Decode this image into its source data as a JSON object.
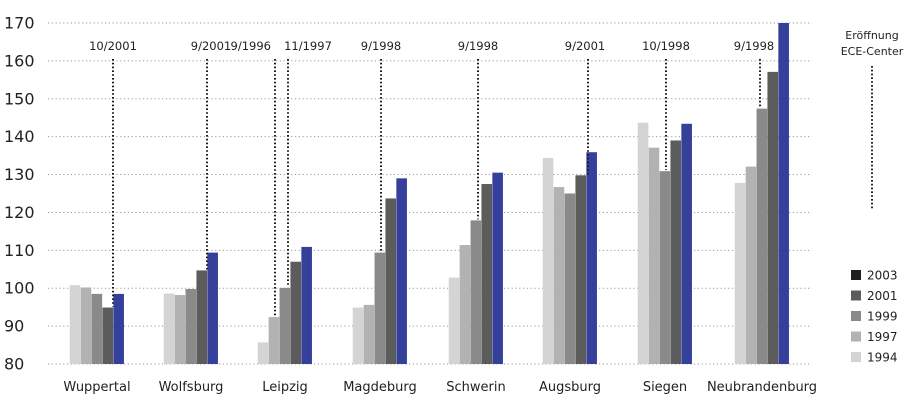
{
  "chart_data": {
    "type": "bar",
    "categories": [
      "Wuppertal",
      "Wolfsburg",
      "Leipzig",
      "Magdeburg",
      "Schwerin",
      "Augsburg",
      "Siegen",
      "Neubrandenburg"
    ],
    "series": [
      {
        "name": "1994",
        "values": [
          100.8,
          98.6,
          85.7,
          94.9,
          102.8,
          134.4,
          143.7,
          127.8
        ]
      },
      {
        "name": "1997",
        "values": [
          100.2,
          98.2,
          92.4,
          95.6,
          111.4,
          126.7,
          137.1,
          132.1
        ]
      },
      {
        "name": "1999",
        "values": [
          98.5,
          99.8,
          100.1,
          109.4,
          117.9,
          125.0,
          130.9,
          147.4
        ]
      },
      {
        "name": "2001",
        "values": [
          94.9,
          104.7,
          107.0,
          123.7,
          127.5,
          129.8,
          139.0,
          157.1
        ]
      },
      {
        "name": "2003",
        "values": [
          98.5,
          109.4,
          110.9,
          129.0,
          130.5,
          135.9,
          143.4,
          170.0
        ]
      }
    ],
    "opening_dates": [
      {
        "category": "Wuppertal",
        "label": "10/2001"
      },
      {
        "category": "Wolfsburg",
        "label": "9/2001"
      },
      {
        "category": "Leipzig",
        "label": "9/1996"
      },
      {
        "category": "Leipzig",
        "label": "11/1997"
      },
      {
        "category": "Magdeburg",
        "label": "9/1998"
      },
      {
        "category": "Schwerin",
        "label": "9/1998"
      },
      {
        "category": "Augsburg",
        "label": "9/2001"
      },
      {
        "category": "Siegen",
        "label": "10/1998"
      },
      {
        "category": "Neubrandenburg",
        "label": "9/1998"
      }
    ],
    "annotation_legend": [
      "Eröffnung",
      "ECE-Center"
    ],
    "legend_order": [
      "2003",
      "2001",
      "1999",
      "1997",
      "1994"
    ],
    "yticks": [
      80,
      90,
      100,
      110,
      120,
      130,
      140,
      150,
      160,
      170
    ],
    "ylim": [
      80,
      170
    ],
    "grid": true,
    "legend_position": "right",
    "colors": {
      "1994": "#d4d4d4",
      "1997": "#b2b2b2",
      "1999": "#8a8a8a",
      "2001": "#5c5c5c",
      "2003": "#35409a",
      "legend_2003": "#1e1e1e"
    }
  }
}
